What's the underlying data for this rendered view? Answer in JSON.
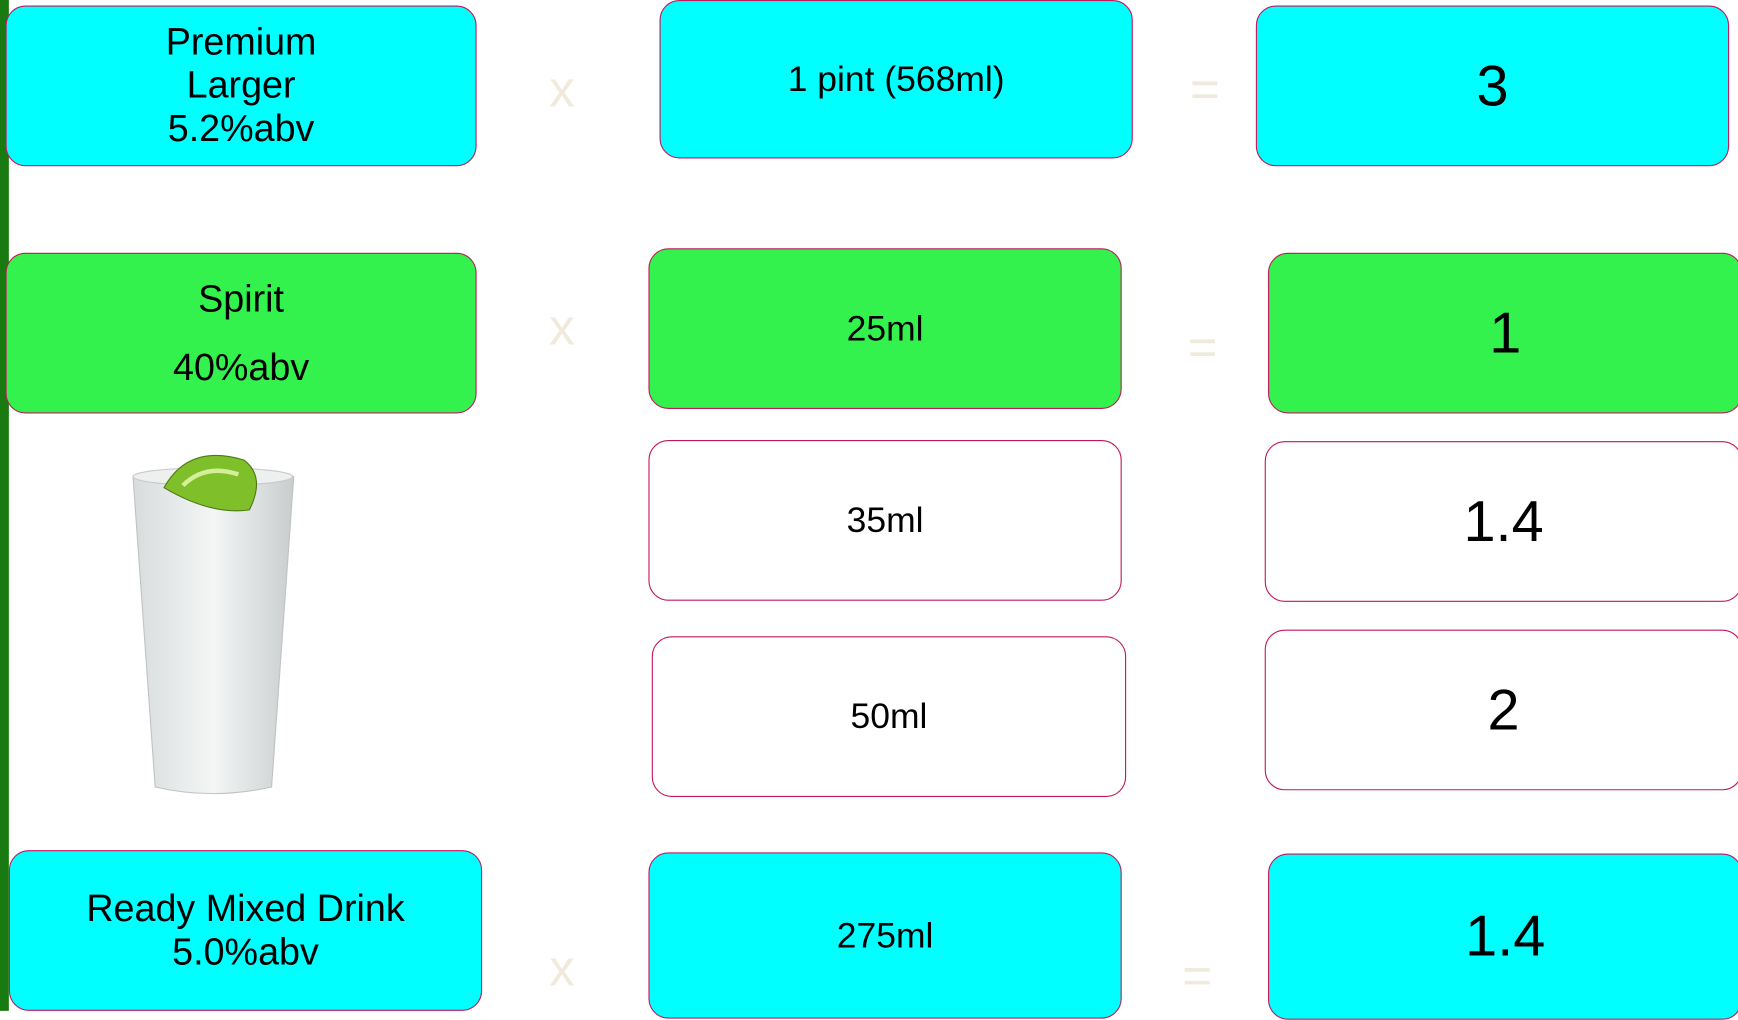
{
  "rows": [
    {
      "drink": [
        "Premium",
        "Larger",
        "5.2%abv"
      ],
      "times": "x",
      "measure": "1 pint (568ml)",
      "equals": "=",
      "units": "3"
    },
    {
      "drink": [
        "Spirit",
        "40%abv"
      ],
      "times": "x",
      "measure": "25ml",
      "equals": "=",
      "units": "1"
    },
    {
      "measure": "35ml",
      "units": "1.4"
    },
    {
      "measure": "50ml",
      "units": "2"
    },
    {
      "drink": [
        "Ready Mixed Drink",
        "5.0%abv"
      ],
      "times": "x",
      "measure": "275ml",
      "equals": "=",
      "units": "1.4"
    }
  ]
}
